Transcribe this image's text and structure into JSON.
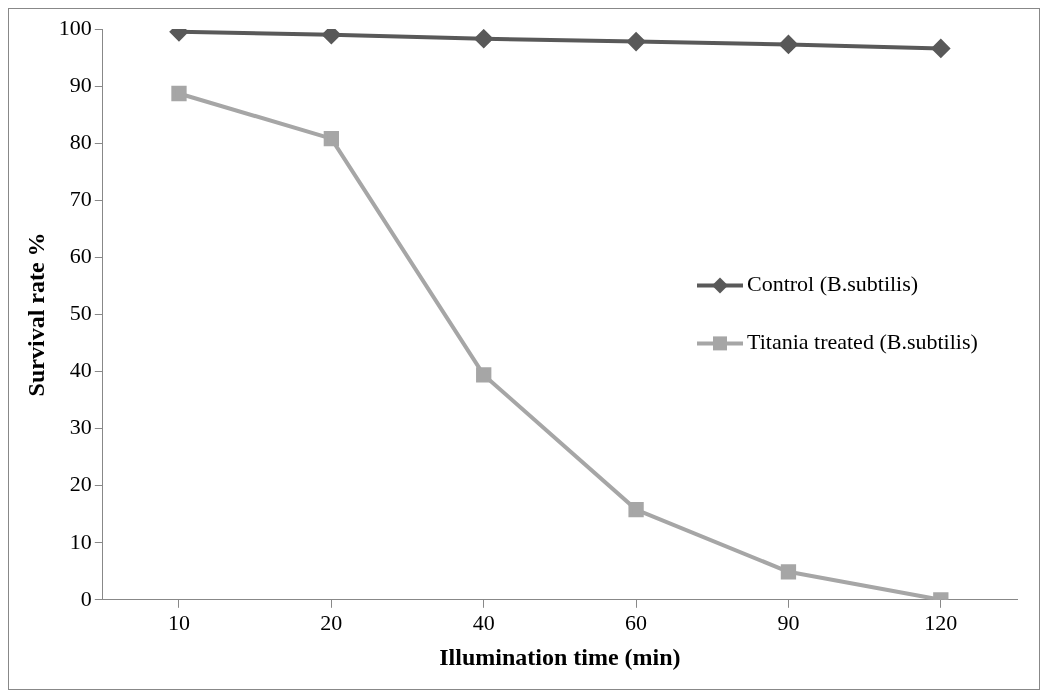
{
  "chart_data": {
    "type": "line",
    "xlabel": "Illumination time (min)",
    "ylabel": "Survival rate %",
    "categories": [
      "10",
      "20",
      "40",
      "60",
      "90",
      "120"
    ],
    "series": [
      {
        "name": "Control (B.subtilis)",
        "color": "#595959",
        "marker": "diamond",
        "values": [
          99.5,
          99,
          98.3,
          97.8,
          97.3,
          96.6
        ]
      },
      {
        "name": "Titania treated (B.subtilis)",
        "color": "#a6a6a6",
        "marker": "square",
        "values": [
          88.7,
          80.8,
          39.4,
          15.8,
          4.9,
          0
        ]
      }
    ],
    "ylim": [
      0,
      100
    ],
    "yticks": [
      0,
      10,
      20,
      30,
      40,
      50,
      60,
      70,
      80,
      90,
      100
    ],
    "grid": false,
    "legend": "right"
  }
}
